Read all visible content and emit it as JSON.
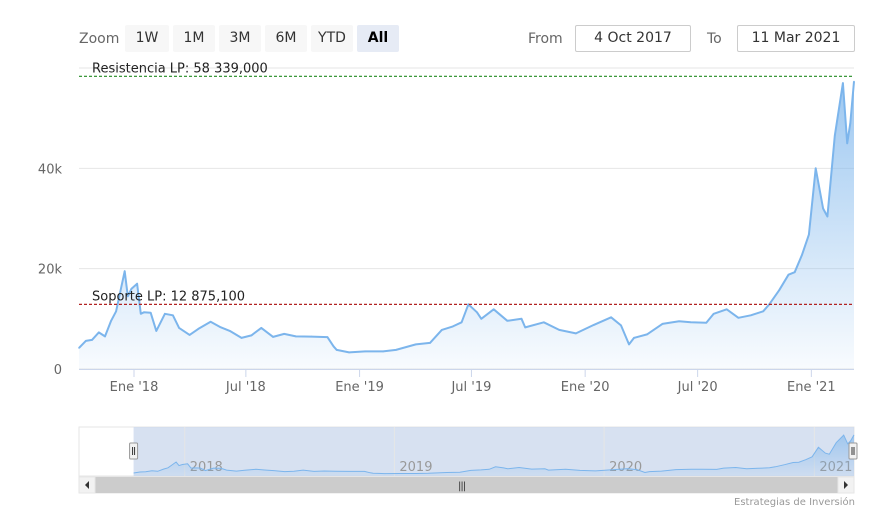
{
  "toolbar": {
    "zoom_label": "Zoom",
    "buttons": [
      "1W",
      "1M",
      "3M",
      "6M",
      "YTD",
      "All"
    ],
    "active_button": "All",
    "from_label": "From",
    "from_value": "4 Oct 2017",
    "to_label": "To",
    "to_value": "11 Mar 2021"
  },
  "credit": "Estrategias de Inversión",
  "colors": {
    "series": "#7cb5ec",
    "resistance": "#228b22",
    "support": "#b22222",
    "navigator_mask": "#cdd9ee"
  },
  "chart_data": {
    "type": "area",
    "series": [
      {
        "x": [
          "2017-10-04",
          "2017-10-15",
          "2017-10-25",
          "2017-11-05",
          "2017-11-15",
          "2017-11-25",
          "2017-12-03",
          "2017-12-10",
          "2017-12-17",
          "2017-12-22",
          "2017-12-28",
          "2018-01-06",
          "2018-01-12",
          "2018-01-17",
          "2018-01-28",
          "2018-02-06",
          "2018-02-20",
          "2018-03-05",
          "2018-03-15",
          "2018-04-01",
          "2018-04-15",
          "2018-05-05",
          "2018-05-20",
          "2018-06-05",
          "2018-06-24",
          "2018-07-10",
          "2018-07-26",
          "2018-08-14",
          "2018-09-01",
          "2018-09-20",
          "2018-10-15",
          "2018-11-10",
          "2018-11-20",
          "2018-11-25",
          "2018-12-15",
          "2019-01-10",
          "2019-02-08",
          "2019-03-01",
          "2019-04-02",
          "2019-04-25",
          "2019-05-14",
          "2019-06-01",
          "2019-06-15",
          "2019-06-26",
          "2019-07-10",
          "2019-07-17",
          "2019-08-06",
          "2019-08-28",
          "2019-09-20",
          "2019-09-26",
          "2019-10-26",
          "2019-11-20",
          "2019-12-17",
          "2020-01-15",
          "2020-02-12",
          "2020-02-28",
          "2020-03-12",
          "2020-03-20",
          "2020-04-10",
          "2020-05-05",
          "2020-06-01",
          "2020-06-20",
          "2020-07-15",
          "2020-07-27",
          "2020-08-17",
          "2020-09-05",
          "2020-09-25",
          "2020-10-15",
          "2020-10-25",
          "2020-11-10",
          "2020-11-25",
          "2020-12-05",
          "2020-12-17",
          "2020-12-28",
          "2021-01-08",
          "2021-01-20",
          "2021-01-27",
          "2021-02-08",
          "2021-02-21",
          "2021-02-28",
          "2021-03-05",
          "2021-03-11"
        ],
        "values": [
          4200,
          5600,
          5800,
          7300,
          6500,
          9600,
          11500,
          15500,
          19500,
          14500,
          16000,
          17000,
          11000,
          11300,
          11200,
          7600,
          11000,
          10700,
          8200,
          6800,
          8000,
          9400,
          8400,
          7600,
          6200,
          6700,
          8200,
          6400,
          7000,
          6500,
          6450,
          6350,
          4500,
          3800,
          3300,
          3500,
          3500,
          3800,
          4900,
          5200,
          7800,
          8500,
          9300,
          12900,
          11300,
          10000,
          11900,
          9600,
          10000,
          8300,
          9300,
          7800,
          7100,
          8800,
          10300,
          8700,
          4900,
          6200,
          6900,
          9000,
          9500,
          9300,
          9200,
          11000,
          11900,
          10200,
          10700,
          11500,
          12900,
          15700,
          18800,
          19300,
          22800,
          26800,
          40000,
          32000,
          30400,
          46500,
          57000,
          45000,
          49000,
          57300
        ]
      }
    ],
    "ylim": [
      0,
      60000
    ],
    "y_ticks": [
      0,
      20000,
      40000
    ],
    "y_tick_labels": [
      "0",
      "20k",
      "40k"
    ],
    "x_ticks": [
      "2018-01-01",
      "2018-07-01",
      "2019-01-01",
      "2019-07-01",
      "2020-01-01",
      "2020-07-01",
      "2021-01-01"
    ],
    "x_tick_labels": [
      "Ene '18",
      "Jul '18",
      "Ene '19",
      "Jul '19",
      "Ene '20",
      "Jul '20",
      "Ene '21"
    ],
    "plot_lines": [
      {
        "value": 58339,
        "label": "Resistencia LP: 58 339,000",
        "style": "dashed",
        "color": "#228b22"
      },
      {
        "value": 12875.1,
        "label": "Soporte LP: 12 875,100",
        "style": "dashed",
        "color": "#b22222"
      }
    ],
    "navigator": {
      "x_range": [
        "2017-07-01",
        "2021-03-11"
      ],
      "x_tick_labels": [
        "2018",
        "2019",
        "2020",
        "2021"
      ],
      "x_ticks": [
        "2018-01-01",
        "2019-01-01",
        "2020-01-01",
        "2021-01-01"
      ],
      "selected_range": [
        "2017-10-04",
        "2021-03-11"
      ]
    },
    "grid": true,
    "legend": "none"
  }
}
